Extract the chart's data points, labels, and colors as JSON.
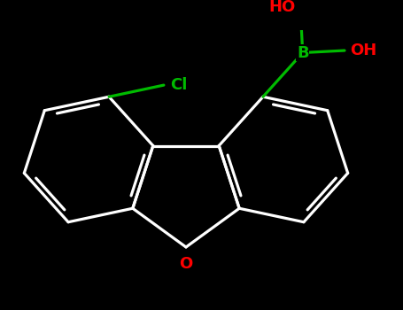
{
  "bg": "#000000",
  "bond_color": "#ffffff",
  "B_color": "#00bb00",
  "O_color": "#ff0000",
  "Cl_color": "#00bb00",
  "lw": 2.3,
  "lw_thick": 2.5,
  "font_B": 13,
  "font_O": 14,
  "font_HO": 13,
  "font_Cl": 13,
  "fig_w": 4.55,
  "fig_h": 3.5,
  "dpi": 100,
  "xlim": [
    -2.4,
    2.8
  ],
  "ylim": [
    -1.5,
    1.8
  ]
}
